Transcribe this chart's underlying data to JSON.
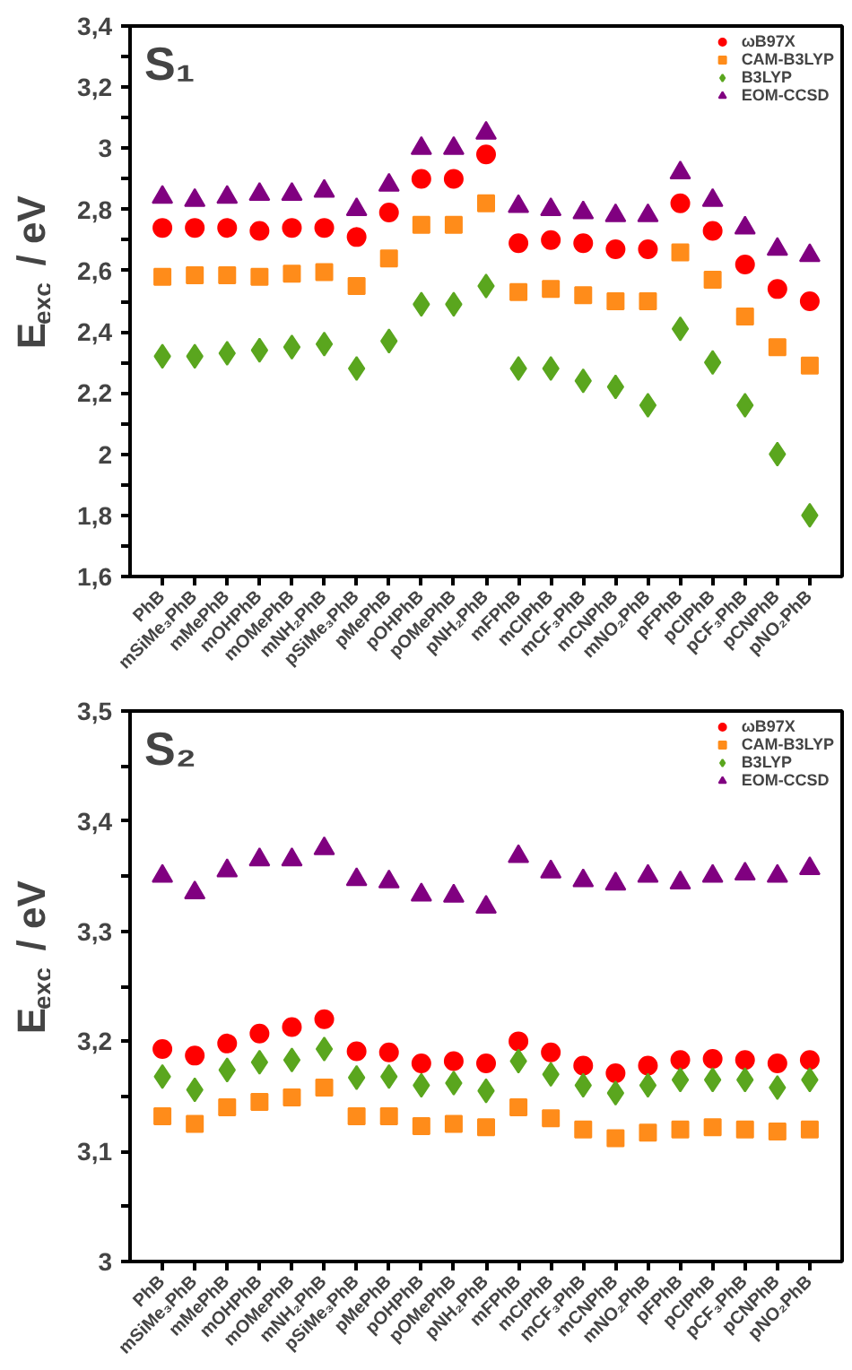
{
  "chart_data": [
    {
      "type": "scatter",
      "title": "S₁",
      "ylabel": "E$_{exc}$ / eV",
      "legend": "top right",
      "grid": false,
      "categories": [
        "PhB",
        "mSiMe₃PhB",
        "mMePhB",
        "mOHPhB",
        "mOMePhB",
        "mNH₂PhB",
        "pSiMe₃PhB",
        "pMePhB",
        "pOHPhB",
        "pOMePhB",
        "pNH₂PhB",
        "mFPhB",
        "mClPhB",
        "mCF₃PhB",
        "mCNPhB",
        "mNO₂PhB",
        "pFPhB",
        "pClPhB",
        "pCF₃PhB",
        "pCNPhB",
        "pNO₂PhB"
      ],
      "ylim": [
        1.6,
        3.4
      ],
      "yticks": [
        {
          "value": 1.6,
          "label": "1,6"
        },
        {
          "value": 1.7,
          "label": null
        },
        {
          "value": 1.8,
          "label": "1,8"
        },
        {
          "value": 1.9,
          "label": null
        },
        {
          "value": 2,
          "label": "2"
        },
        {
          "value": 2.1,
          "label": null
        },
        {
          "value": 2.2,
          "label": "2,2"
        },
        {
          "value": 2.3,
          "label": null
        },
        {
          "value": 2.4,
          "label": "2,4"
        },
        {
          "value": 2.5,
          "label": null
        },
        {
          "value": 2.6,
          "label": "2,6"
        },
        {
          "value": 2.7,
          "label": null
        },
        {
          "value": 2.8,
          "label": "2,8"
        },
        {
          "value": 2.9,
          "label": null
        },
        {
          "value": 3,
          "label": "3"
        },
        {
          "value": 3.1,
          "label": null
        },
        {
          "value": 3.2,
          "label": "3,2"
        },
        {
          "value": 3.3,
          "label": null
        },
        {
          "value": 3.4,
          "label": "3,4"
        }
      ],
      "series": [
        {
          "name": "ωB97X",
          "color": "#ff0000",
          "marker": "circle",
          "values": [
            2.74,
            2.74,
            2.74,
            2.73,
            2.74,
            2.74,
            2.71,
            2.79,
            2.9,
            2.9,
            2.98,
            2.69,
            2.7,
            2.69,
            2.67,
            2.67,
            2.82,
            2.73,
            2.62,
            2.54,
            2.5
          ]
        },
        {
          "name": "CAM-B3LYP",
          "color": "#ff8c1a",
          "marker": "square",
          "values": [
            2.58,
            2.585,
            2.585,
            2.58,
            2.59,
            2.595,
            2.55,
            2.64,
            2.75,
            2.75,
            2.82,
            2.53,
            2.54,
            2.52,
            2.5,
            2.5,
            2.66,
            2.57,
            2.45,
            2.35,
            2.29
          ]
        },
        {
          "name": "B3LYP",
          "color": "#5aa61e",
          "marker": "diamond",
          "values": [
            2.32,
            2.32,
            2.33,
            2.34,
            2.35,
            2.36,
            2.28,
            2.37,
            2.49,
            2.49,
            2.55,
            2.28,
            2.28,
            2.24,
            2.22,
            2.16,
            2.41,
            2.3,
            2.16,
            2.0,
            1.8
          ]
        },
        {
          "name": "EOM-CCSD",
          "color": "#800080",
          "marker": "triangle",
          "values": [
            2.84,
            2.83,
            2.84,
            2.85,
            2.85,
            2.86,
            2.8,
            2.88,
            3.0,
            3.0,
            3.05,
            2.81,
            2.8,
            2.79,
            2.78,
            2.78,
            2.92,
            2.83,
            2.74,
            2.67,
            2.65
          ]
        }
      ]
    },
    {
      "type": "scatter",
      "title": "S₂",
      "ylabel": "E$_{exc}$ / eV",
      "legend": "top right",
      "grid": false,
      "categories": [
        "PhB",
        "mSiMe₃PhB",
        "mMePhB",
        "mOHPhB",
        "mOMePhB",
        "mNH₂PhB",
        "pSiMe₃PhB",
        "pMePhB",
        "pOHPhB",
        "pOMePhB",
        "pNH₂PhB",
        "mFPhB",
        "mClPhB",
        "mCF₃PhB",
        "mCNPhB",
        "mNO₂PhB",
        "pFPhB",
        "pClPhB",
        "pCF₃PhB",
        "pCNPhB",
        "pNO₂PhB"
      ],
      "ylim": [
        3.0,
        3.5
      ],
      "yticks": [
        {
          "value": 3,
          "label": "3"
        },
        {
          "value": 3.05,
          "label": null
        },
        {
          "value": 3.1,
          "label": "3,1"
        },
        {
          "value": 3.15,
          "label": null
        },
        {
          "value": 3.2,
          "label": "3,2"
        },
        {
          "value": 3.25,
          "label": null
        },
        {
          "value": 3.3,
          "label": "3,3"
        },
        {
          "value": 3.35,
          "label": null
        },
        {
          "value": 3.4,
          "label": "3,4"
        },
        {
          "value": 3.45,
          "label": null
        },
        {
          "value": 3.5,
          "label": "3,5"
        }
      ],
      "series": [
        {
          "name": "ωB97X",
          "color": "#ff0000",
          "marker": "circle",
          "values": [
            3.193,
            3.187,
            3.198,
            3.207,
            3.213,
            3.22,
            3.191,
            3.19,
            3.18,
            3.182,
            3.18,
            3.2,
            3.19,
            3.178,
            3.171,
            3.178,
            3.183,
            3.184,
            3.183,
            3.18,
            3.183
          ]
        },
        {
          "name": "CAM-B3LYP",
          "color": "#ff8c1a",
          "marker": "square",
          "values": [
            3.132,
            3.125,
            3.14,
            3.145,
            3.149,
            3.158,
            3.132,
            3.132,
            3.123,
            3.125,
            3.122,
            3.14,
            3.13,
            3.12,
            3.112,
            3.117,
            3.12,
            3.122,
            3.12,
            3.118,
            3.12
          ]
        },
        {
          "name": "B3LYP",
          "color": "#5aa61e",
          "marker": "diamond",
          "values": [
            3.168,
            3.156,
            3.174,
            3.181,
            3.183,
            3.193,
            3.167,
            3.168,
            3.16,
            3.162,
            3.155,
            3.182,
            3.17,
            3.16,
            3.153,
            3.16,
            3.165,
            3.165,
            3.165,
            3.158,
            3.165
          ]
        },
        {
          "name": "EOM-CCSD",
          "color": "#800080",
          "marker": "triangle",
          "values": [
            3.35,
            3.335,
            3.355,
            3.365,
            3.365,
            3.375,
            3.347,
            3.345,
            3.333,
            3.332,
            3.322,
            3.368,
            3.354,
            3.346,
            3.343,
            3.35,
            3.344,
            3.35,
            3.352,
            3.35,
            3.357
          ]
        }
      ]
    }
  ]
}
